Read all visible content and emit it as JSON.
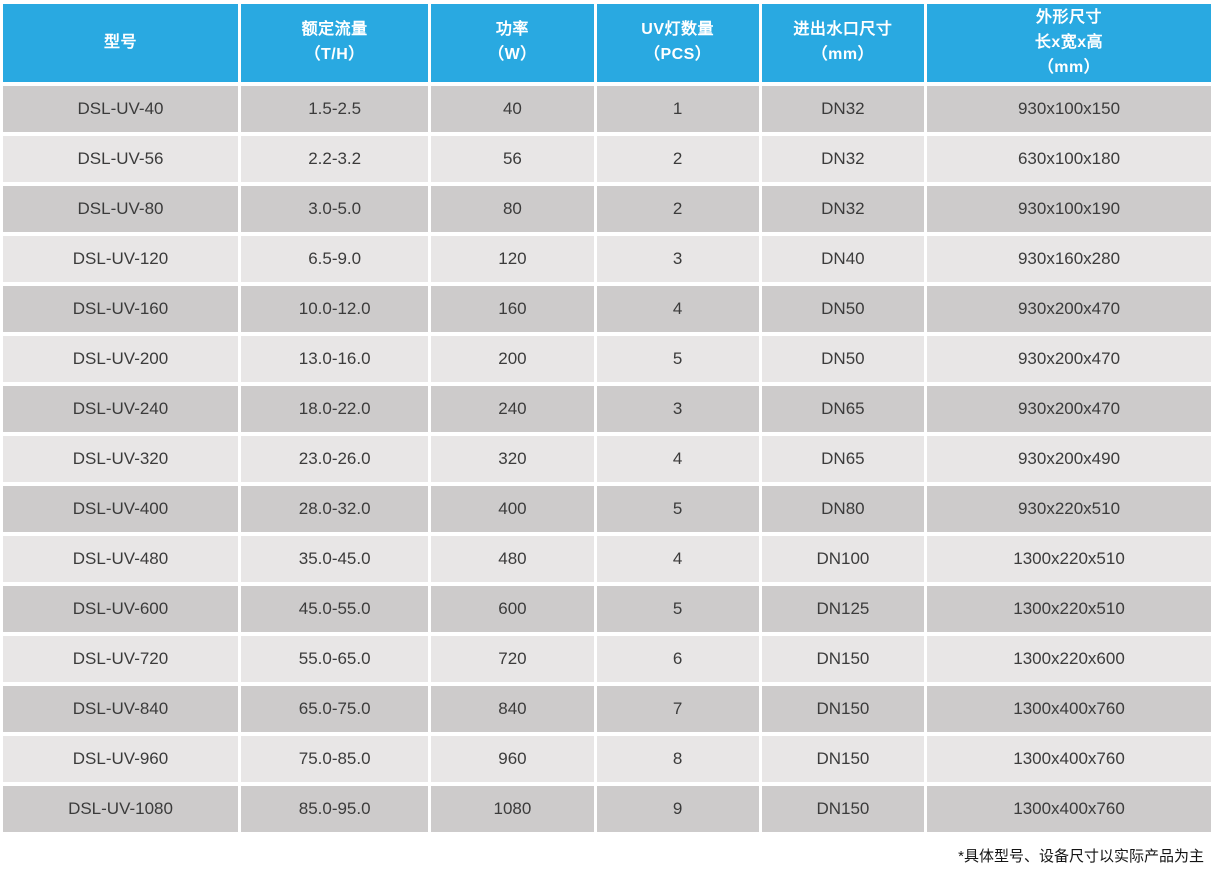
{
  "chart_data": {
    "type": "table",
    "columns": [
      "型号",
      "额定流量\n（T/H）",
      "功率\n（W）",
      "UV灯数量\n（PCS）",
      "进出水口尺寸\n（mm）",
      "外形尺寸\n长x宽x高\n（mm）"
    ],
    "rows": [
      [
        "DSL-UV-40",
        "1.5-2.5",
        "40",
        "1",
        "DN32",
        "930x100x150"
      ],
      [
        "DSL-UV-56",
        "2.2-3.2",
        "56",
        "2",
        "DN32",
        "630x100x180"
      ],
      [
        "DSL-UV-80",
        "3.0-5.0",
        "80",
        "2",
        "DN32",
        "930x100x190"
      ],
      [
        "DSL-UV-120",
        "6.5-9.0",
        "120",
        "3",
        "DN40",
        "930x160x280"
      ],
      [
        "DSL-UV-160",
        "10.0-12.0",
        "160",
        "4",
        "DN50",
        "930x200x470"
      ],
      [
        "DSL-UV-200",
        "13.0-16.0",
        "200",
        "5",
        "DN50",
        "930x200x470"
      ],
      [
        "DSL-UV-240",
        "18.0-22.0",
        "240",
        "3",
        "DN65",
        "930x200x470"
      ],
      [
        "DSL-UV-320",
        "23.0-26.0",
        "320",
        "4",
        "DN65",
        "930x200x490"
      ],
      [
        "DSL-UV-400",
        "28.0-32.0",
        "400",
        "5",
        "DN80",
        "930x220x510"
      ],
      [
        "DSL-UV-480",
        "35.0-45.0",
        "480",
        "4",
        "DN100",
        "1300x220x510"
      ],
      [
        "DSL-UV-600",
        "45.0-55.0",
        "600",
        "5",
        "DN125",
        "1300x220x510"
      ],
      [
        "DSL-UV-720",
        "55.0-65.0",
        "720",
        "6",
        "DN150",
        "1300x220x600"
      ],
      [
        "DSL-UV-840",
        "65.0-75.0",
        "840",
        "7",
        "DN150",
        "1300x400x760"
      ],
      [
        "DSL-UV-960",
        "75.0-85.0",
        "960",
        "8",
        "DN150",
        "1300x400x760"
      ],
      [
        "DSL-UV-1080",
        "85.0-95.0",
        "1080",
        "9",
        "DN150",
        "1300x400x760"
      ]
    ],
    "footnote": "*具体型号、设备尺寸以实际产品为主",
    "layout": {
      "grid": "off",
      "row_stripe_order": [
        "dark",
        "light"
      ]
    }
  },
  "colors": {
    "header_bg": "#29a9e1",
    "header_text": "#ffffff",
    "row_dark": "#cdcbcb",
    "row_light": "#e8e6e6",
    "cell_text": "#3b3b3b",
    "note_text": "#141414",
    "gap": "#ffffff"
  }
}
